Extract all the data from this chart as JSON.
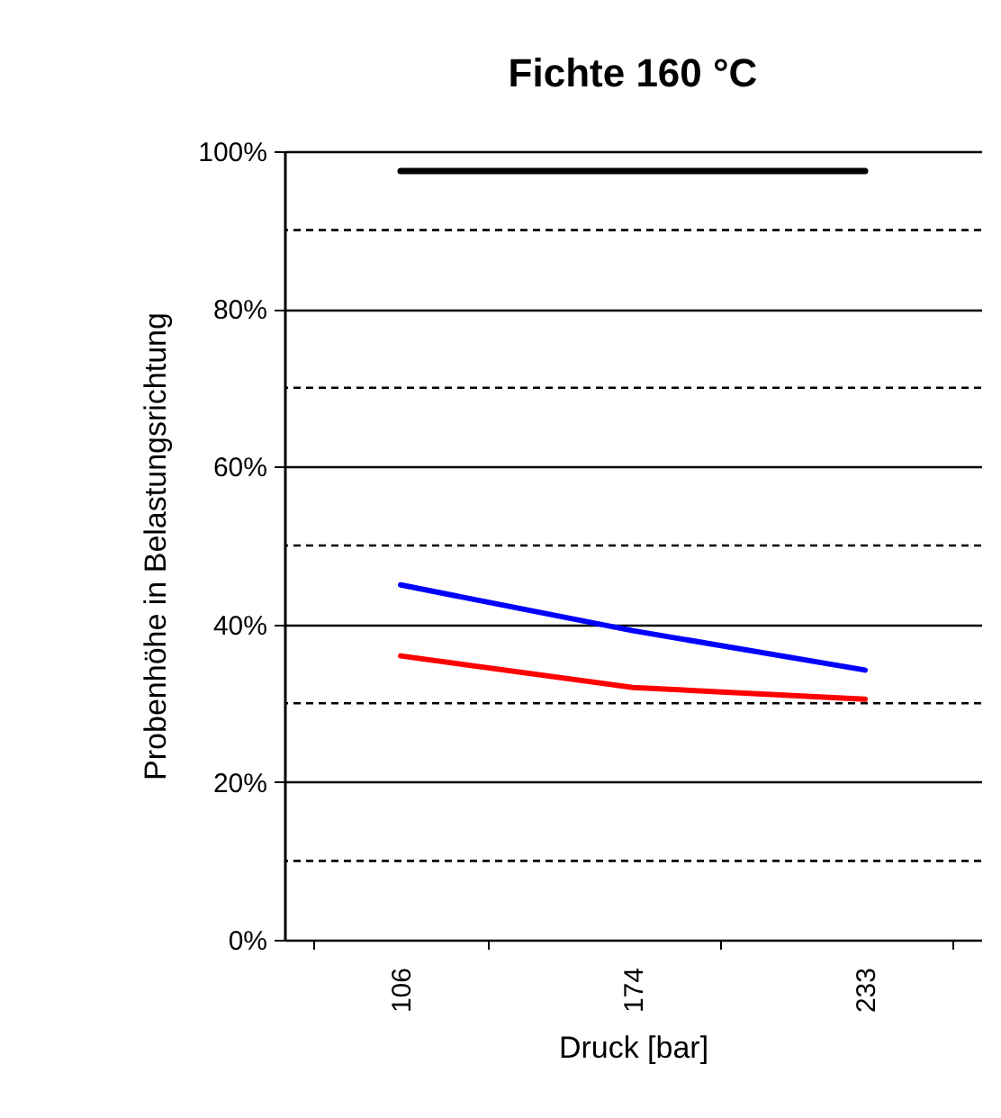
{
  "chart_data": {
    "type": "line",
    "title": "Fichte 160 °C",
    "xlabel": "Druck [bar]",
    "ylabel": "Probenhöhe in Belastungsrichtung",
    "categories": [
      "106",
      "174",
      "233"
    ],
    "series": [
      {
        "color": "#000000",
        "values": [
          97.5,
          97.5,
          97.5
        ]
      },
      {
        "color": "#0000ff",
        "values": [
          45,
          39.2,
          34.2
        ]
      },
      {
        "color": "#ff0000",
        "values": [
          36,
          32,
          30.5
        ]
      }
    ],
    "ylim": [
      0,
      100
    ],
    "yticks": [
      {
        "value": 0,
        "label": "0%"
      },
      {
        "value": 20,
        "label": "20%"
      },
      {
        "value": 40,
        "label": "40%"
      },
      {
        "value": 60,
        "label": "60%"
      },
      {
        "value": 80,
        "label": "80%"
      },
      {
        "value": 100,
        "label": "100%"
      }
    ],
    "ref_lines": [
      {
        "axis": "y",
        "value": 10,
        "color": "#000000",
        "line_style": "dashed"
      },
      {
        "axis": "y",
        "value": 30,
        "color": "#000000",
        "line_style": "dashed"
      },
      {
        "axis": "y",
        "value": 50,
        "color": "#000000",
        "line_style": "dashed"
      },
      {
        "axis": "y",
        "value": 70,
        "color": "#000000",
        "line_style": "dashed"
      },
      {
        "axis": "y",
        "value": 90,
        "color": "#000000",
        "line_style": "dashed"
      }
    ],
    "grid": "y",
    "marker": "none",
    "line_style": "solid"
  }
}
